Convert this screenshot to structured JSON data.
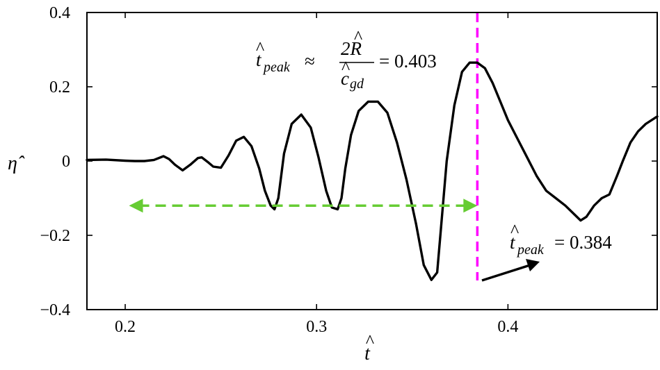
{
  "chart_data": {
    "type": "line",
    "xlabel": "t̂",
    "ylabel": "η̂",
    "xlim": [
      0.18,
      0.478
    ],
    "ylim": [
      -0.4,
      0.4
    ],
    "xticks": [
      0.2,
      0.3,
      0.4
    ],
    "xtick_labels": [
      "0.2",
      "0.3",
      "0.4"
    ],
    "yticks": [
      -0.4,
      -0.2,
      0,
      0.2,
      0.4
    ],
    "ytick_labels": [
      "−0.4",
      "−0.2",
      "0",
      "0.2",
      "0.4"
    ],
    "grid": false,
    "series": [
      {
        "color": "#000000",
        "x": [
          0.18,
          0.19,
          0.2,
          0.205,
          0.21,
          0.215,
          0.22,
          0.223,
          0.226,
          0.23,
          0.234,
          0.238,
          0.24,
          0.243,
          0.246,
          0.25,
          0.254,
          0.258,
          0.262,
          0.266,
          0.27,
          0.273,
          0.276,
          0.278,
          0.28,
          0.283,
          0.287,
          0.292,
          0.297,
          0.301,
          0.305,
          0.308,
          0.311,
          0.313,
          0.315,
          0.318,
          0.322,
          0.327,
          0.332,
          0.337,
          0.342,
          0.347,
          0.352,
          0.356,
          0.36,
          0.363,
          0.365,
          0.368,
          0.372,
          0.376,
          0.38,
          0.384,
          0.388,
          0.392,
          0.396,
          0.4,
          0.405,
          0.41,
          0.415,
          0.42,
          0.425,
          0.43,
          0.435,
          0.438,
          0.441,
          0.445,
          0.449,
          0.453,
          0.457,
          0.46,
          0.464,
          0.468,
          0.472,
          0.478
        ],
        "y": [
          0.003,
          0.004,
          0.001,
          0.0,
          0.0,
          0.003,
          0.013,
          0.005,
          -0.01,
          -0.025,
          -0.01,
          0.008,
          0.01,
          -0.002,
          -0.015,
          -0.018,
          0.015,
          0.055,
          0.065,
          0.04,
          -0.02,
          -0.08,
          -0.12,
          -0.13,
          -0.1,
          0.02,
          0.1,
          0.125,
          0.09,
          0.01,
          -0.08,
          -0.125,
          -0.13,
          -0.1,
          -0.02,
          0.07,
          0.135,
          0.16,
          0.16,
          0.13,
          0.05,
          -0.05,
          -0.17,
          -0.28,
          -0.32,
          -0.3,
          -0.18,
          0.0,
          0.15,
          0.24,
          0.265,
          0.265,
          0.25,
          0.21,
          0.16,
          0.11,
          0.06,
          0.01,
          -0.04,
          -0.08,
          -0.1,
          -0.12,
          -0.145,
          -0.16,
          -0.15,
          -0.12,
          -0.1,
          -0.09,
          -0.04,
          0.0,
          0.05,
          0.08,
          0.1,
          0.12
        ]
      }
    ],
    "annotations": {
      "peak_line_x": 0.384,
      "arrow_range": [
        0.202,
        0.384
      ],
      "arrow_y": -0.12,
      "arrow_color": "#66cc33",
      "peak_line_color": "#ff00ff",
      "formula": {
        "lhs_symbol": "t",
        "lhs_sub": "peak",
        "approx": "≈",
        "num": "2R",
        "den_symbol": "c",
        "den_sub": "gd",
        "rhs": "= 0.403"
      },
      "tpeak": {
        "symbol": "t",
        "sub": "peak",
        "rhs": "= 0.384"
      },
      "hat": "^"
    }
  }
}
